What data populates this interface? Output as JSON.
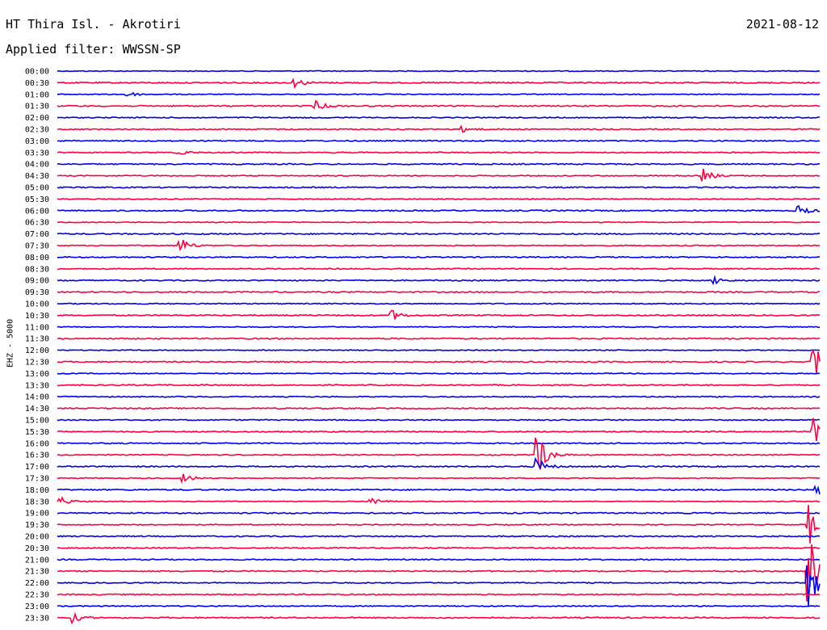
{
  "header": {
    "title": "HT Thira Isl. - Akrotiri",
    "date": "2021-08-12",
    "filter": "Applied filter: WWSSN-SP"
  },
  "chart_data": {
    "type": "line",
    "title": "HT Thira Isl. - Akrotiri",
    "ylabel": "EHZ - 5000",
    "xlabel": "",
    "colors": {
      "blue": "#0000ee",
      "red": "#ff0040"
    },
    "color_cycle": [
      "blue",
      "red"
    ],
    "rows": [
      "00:00",
      "00:30",
      "01:00",
      "01:30",
      "02:00",
      "02:30",
      "03:00",
      "03:30",
      "04:00",
      "04:30",
      "05:00",
      "05:30",
      "06:00",
      "06:30",
      "07:00",
      "07:30",
      "08:00",
      "08:30",
      "09:00",
      "09:30",
      "10:00",
      "10:30",
      "11:00",
      "11:30",
      "12:00",
      "12:30",
      "13:00",
      "13:30",
      "14:00",
      "14:30",
      "15:00",
      "15:30",
      "16:00",
      "16:30",
      "17:00",
      "17:30",
      "18:00",
      "18:30",
      "19:00",
      "19:30",
      "20:00",
      "20:30",
      "21:00",
      "21:30",
      "22:00",
      "22:30",
      "23:00",
      "23:30"
    ],
    "row_minutes": 30,
    "events": [
      {
        "row": "00:30",
        "minute": 9.4,
        "amp": 5
      },
      {
        "row": "01:00",
        "minute": 2.8,
        "amp": 3
      },
      {
        "row": "01:30",
        "minute": 10.2,
        "amp": 6
      },
      {
        "row": "02:30",
        "minute": 16.0,
        "amp": 3
      },
      {
        "row": "03:30",
        "minute": 4.8,
        "amp": 4
      },
      {
        "row": "04:30",
        "minute": 25.4,
        "amp": 9
      },
      {
        "row": "06:00",
        "minute": 29.2,
        "amp": 6
      },
      {
        "row": "07:30",
        "minute": 4.9,
        "amp": 9
      },
      {
        "row": "09:00",
        "minute": 25.9,
        "amp": 4
      },
      {
        "row": "10:30",
        "minute": 13.2,
        "amp": 6
      },
      {
        "row": "12:30",
        "minute": 29.8,
        "amp": 18
      },
      {
        "row": "15:30",
        "minute": 29.8,
        "amp": 16
      },
      {
        "row": "16:30",
        "minute": 18.9,
        "amp": 28
      },
      {
        "row": "17:00",
        "minute": 18.9,
        "amp": 10
      },
      {
        "row": "17:30",
        "minute": 5.0,
        "amp": 5
      },
      {
        "row": "18:00",
        "minute": 29.9,
        "amp": 8
      },
      {
        "row": "18:30",
        "minute": 0.2,
        "amp": 5
      },
      {
        "row": "18:30",
        "minute": 12.4,
        "amp": 5
      },
      {
        "row": "19:30",
        "minute": 29.6,
        "amp": 24
      },
      {
        "row": "21:30",
        "minute": 29.6,
        "amp": 40
      },
      {
        "row": "22:00",
        "minute": 29.6,
        "amp": 30
      },
      {
        "row": "23:30",
        "minute": 0.6,
        "amp": 6
      }
    ]
  }
}
